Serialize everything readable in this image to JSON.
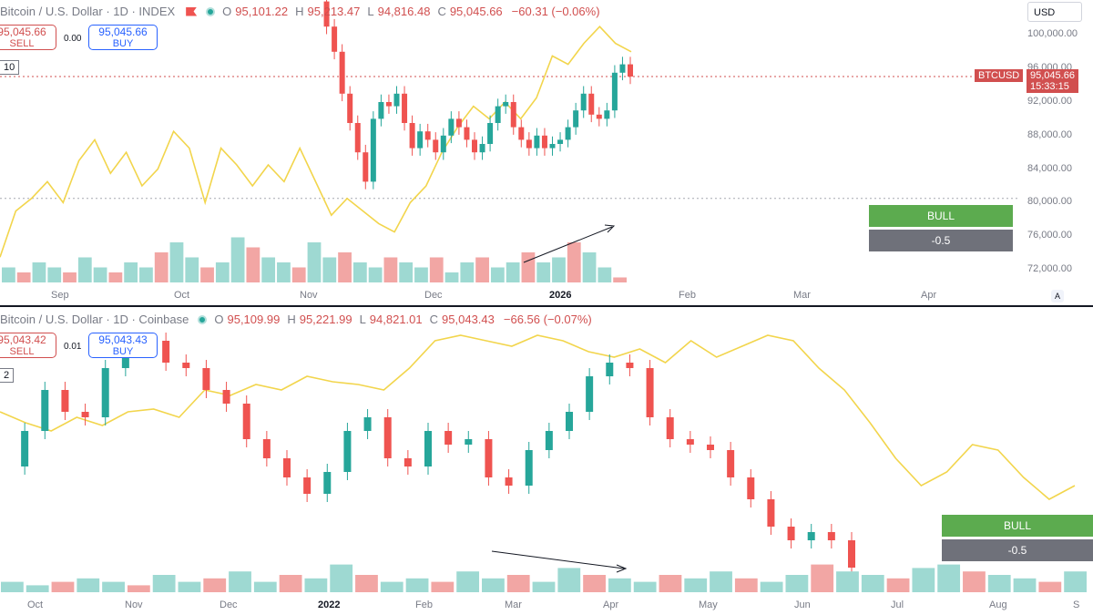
{
  "top": {
    "legend": {
      "symbol": "Bitcoin / U.S. Dollar · 1D · INDEX",
      "o": "95,101.22",
      "h": "95,213.47",
      "l": "94,816.48",
      "c": "95,045.66",
      "chg": "−60.31 (−0.06%)"
    },
    "sell": {
      "price": "95,045.66",
      "label": "SELL"
    },
    "buy": {
      "price": "95,045.66",
      "label": "BUY"
    },
    "spread": "0.00",
    "idx_badge": "10",
    "currency": "USD",
    "price_axis": [
      "100,000.00",
      "96,000.00",
      "92,000.00",
      "88,000.00",
      "84,000.00",
      "80,000.00",
      "76,000.00",
      "72,000.00"
    ],
    "tag_symbol": "BTCUSD",
    "tag_price": "95,045.66",
    "tag_time": "15:33:15",
    "time_axis": [
      "Sep",
      "Oct",
      "Nov",
      "Dec",
      "2026",
      "Feb",
      "Mar",
      "Apr"
    ],
    "auto_label": "A",
    "bull_label": "BULL",
    "neg_label": "-0.5"
  },
  "bottom": {
    "legend": {
      "symbol": "Bitcoin / U.S. Dollar · 1D · Coinbase",
      "o": "95,109.99",
      "h": "95,221.99",
      "l": "94,821.01",
      "c": "95,043.43",
      "chg": "−66.56 (−0.07%)"
    },
    "sell": {
      "price": "95,043.42",
      "label": "SELL"
    },
    "buy": {
      "price": "95,043.43",
      "label": "BUY"
    },
    "spread": "0.01",
    "idx_badge": "2",
    "time_axis": [
      "Oct",
      "Nov",
      "Dec",
      "2022",
      "Feb",
      "Mar",
      "Apr",
      "May",
      "Jun",
      "Jul",
      "Aug",
      "S"
    ],
    "bull_label": "BULL",
    "neg_label": "-0.5"
  },
  "colors": {
    "up": "#26a69a",
    "down": "#ef5350",
    "overlay": "#f2d54c",
    "vol_up": "#9ed9d2",
    "vol_down": "#f2a6a4"
  },
  "chart_data": [
    {
      "type": "candlestick",
      "title": "Bitcoin / U.S. Dollar · 1D · INDEX",
      "x": [
        "Sep",
        "Oct",
        "Nov",
        "Dec",
        "2026",
        "Feb",
        "Mar",
        "Apr"
      ],
      "ylim": [
        72000,
        102000
      ],
      "close_series": [
        104000,
        101000,
        98000,
        93000,
        89500,
        86000,
        82500,
        90000,
        92000,
        91500,
        93000,
        89500,
        86500,
        88500,
        87500,
        86000,
        88000,
        90000,
        89000,
        87500,
        86000,
        87000,
        89500,
        91500,
        92000,
        89000,
        87500,
        86500,
        88000,
        86500,
        87000,
        87500,
        89000,
        91000,
        93000,
        90500,
        90000,
        91000,
        95500,
        96500,
        95045
      ],
      "overlay_series": [
        73500,
        79000,
        80500,
        82500,
        80000,
        85000,
        87500,
        83500,
        86000,
        82000,
        84000,
        88500,
        86500,
        80000,
        86500,
        84500,
        82000,
        84500,
        82500,
        86500,
        82500,
        78500,
        80500,
        79000,
        77500,
        76500,
        80000,
        82000,
        86000,
        89000,
        91500,
        90000,
        92000,
        90000,
        92500,
        97500,
        96500,
        99000,
        101000,
        99000,
        98000
      ],
      "volume_relative": [
        0.3,
        0.2,
        0.4,
        0.3,
        0.2,
        0.5,
        0.3,
        0.2,
        0.4,
        0.3,
        0.6,
        0.8,
        0.5,
        0.3,
        0.4,
        0.9,
        0.7,
        0.5,
        0.4,
        0.3,
        0.8,
        0.5,
        0.6,
        0.4,
        0.3,
        0.5,
        0.4,
        0.3,
        0.5,
        0.2,
        0.4,
        0.5,
        0.3,
        0.4,
        0.6,
        0.4,
        0.5,
        0.8,
        0.6,
        0.3,
        0.1
      ],
      "last_price": 95045.66,
      "annotations": [
        "BULL",
        "-0.5"
      ]
    },
    {
      "type": "candlestick",
      "title": "Bitcoin / U.S. Dollar · 1D · Coinbase",
      "x": [
        "Oct",
        "Nov",
        "Dec",
        "2022",
        "Feb",
        "Mar",
        "Apr",
        "May",
        "Jun",
        "Jul",
        "Aug",
        "S"
      ],
      "close_series": [
        0.42,
        0.55,
        0.7,
        0.62,
        0.6,
        0.78,
        0.85,
        0.88,
        0.8,
        0.78,
        0.7,
        0.65,
        0.52,
        0.45,
        0.38,
        0.32,
        0.4,
        0.55,
        0.6,
        0.45,
        0.42,
        0.55,
        0.5,
        0.52,
        0.38,
        0.35,
        0.48,
        0.55,
        0.62,
        0.75,
        0.8,
        0.78,
        0.6,
        0.52,
        0.5,
        0.48,
        0.38,
        0.3,
        0.2,
        0.15,
        0.18,
        0.15,
        0.05
      ],
      "overlay_series": [
        0.62,
        0.58,
        0.55,
        0.6,
        0.57,
        0.62,
        0.63,
        0.6,
        0.7,
        0.68,
        0.72,
        0.7,
        0.75,
        0.73,
        0.72,
        0.7,
        0.78,
        0.88,
        0.9,
        0.88,
        0.86,
        0.9,
        0.88,
        0.84,
        0.82,
        0.85,
        0.8,
        0.88,
        0.82,
        0.86,
        0.9,
        0.88,
        0.78,
        0.7,
        0.58,
        0.45,
        0.35,
        0.4,
        0.5,
        0.48,
        0.38,
        0.3,
        0.35
      ],
      "volume_relative": [
        0.3,
        0.2,
        0.3,
        0.4,
        0.3,
        0.2,
        0.5,
        0.3,
        0.4,
        0.6,
        0.3,
        0.5,
        0.4,
        0.8,
        0.5,
        0.3,
        0.4,
        0.3,
        0.6,
        0.4,
        0.5,
        0.3,
        0.7,
        0.5,
        0.4,
        0.3,
        0.5,
        0.4,
        0.6,
        0.4,
        0.3,
        0.5,
        0.8,
        0.6,
        0.5,
        0.4,
        0.7,
        0.8,
        0.6,
        0.5,
        0.4,
        0.3,
        0.6
      ],
      "annotations": [
        "BULL",
        "-0.5"
      ]
    }
  ]
}
